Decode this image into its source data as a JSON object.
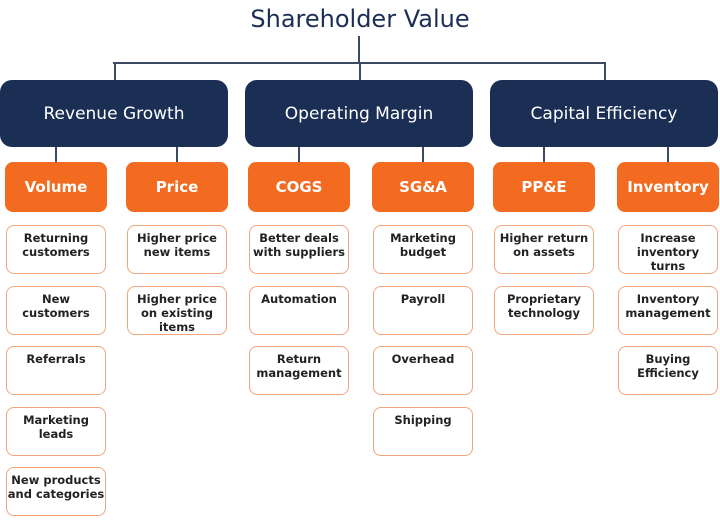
{
  "title": "Shareholder Value",
  "colors": {
    "navy": "#1b2f55",
    "orange": "#f26b21",
    "leaf_border": "#f0a57a"
  },
  "categories": [
    {
      "label": "Revenue Growth",
      "drivers": [
        {
          "label": "Volume",
          "items": [
            "Returning customers",
            "New customers",
            "Referrals",
            "Marketing leads",
            "New products and categories"
          ]
        },
        {
          "label": "Price",
          "items": [
            "Higher price new items",
            "Higher price on existing items"
          ]
        }
      ]
    },
    {
      "label": "Operating Margin",
      "drivers": [
        {
          "label": "COGS",
          "items": [
            "Better deals with suppliers",
            "Automation",
            "Return management"
          ]
        },
        {
          "label": "SG&A",
          "items": [
            "Marketing budget",
            "Payroll",
            "Overhead",
            "Shipping"
          ]
        }
      ]
    },
    {
      "label": "Capital Efficiency",
      "drivers": [
        {
          "label": "PP&E",
          "items": [
            "Higher return on assets",
            "Proprietary technology"
          ]
        },
        {
          "label": "Inventory",
          "items": [
            "Increase inventory turns",
            "Inventory management",
            "Buying Efficiency"
          ]
        }
      ]
    }
  ]
}
